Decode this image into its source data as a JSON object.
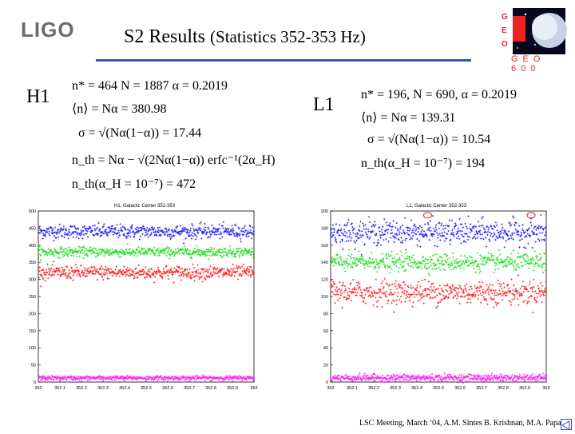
{
  "header": {
    "logo_text": "LIGO",
    "title_main": "S2 Results",
    "title_sub": "(Statistics 352-353 Hz)",
    "geo_logo": "GEO 600"
  },
  "h1": {
    "label": "H1",
    "eq1": "n* = 464     N = 1887     α = 0.2019",
    "eq2": "⟨n⟩ = Nα = 380.98",
    "eq3": "σ = √(Nα(1−α)) = 17.44",
    "eq4": "n_th = Nα − √(2Nα(1−α)) erfc⁻¹(2α_H)",
    "eq5": "n_th(α_H = 10⁻⁷) = 472"
  },
  "l1": {
    "label": "L1",
    "eq1": "n* = 196,     N = 690,     α = 0.2019",
    "eq2": "⟨n⟩ = Nα = 139.31",
    "eq3": "σ = √(Nα(1−α)) = 10.54",
    "eq4": "n_th(α_H = 10⁻⁷) = 194"
  },
  "chart_data": [
    {
      "type": "scatter",
      "title": "H1, Galactic Center 352-353",
      "x_ticks": [
        "352",
        "352.1",
        "352.2",
        "352.3",
        "352.4",
        "352.5",
        "352.6",
        "352.7",
        "352.8",
        "352.9",
        "353"
      ],
      "y_ticks": [
        "0",
        "50",
        "100",
        "150",
        "200",
        "250",
        "300",
        "350",
        "400",
        "450",
        "500"
      ],
      "xlim": [
        352,
        353
      ],
      "ylim": [
        0,
        500
      ],
      "series": [
        {
          "color": "#1a1aff",
          "mean": 440,
          "spread": 10
        },
        {
          "color": "#22dd22",
          "mean": 380,
          "spread": 7
        },
        {
          "color": "#ff1a1a",
          "mean": 320,
          "spread": 10
        },
        {
          "color": "#ff22ff",
          "mean": 12,
          "spread": 3
        }
      ]
    },
    {
      "type": "scatter",
      "title": "L1, Galactic Center 352-353",
      "x_ticks": [
        "352",
        "352.1",
        "352.2",
        "352.3",
        "352.4",
        "352.5",
        "352.6",
        "352.7",
        "352.8",
        "352.9",
        "353"
      ],
      "y_ticks": [
        "0",
        "20",
        "40",
        "60",
        "80",
        "100",
        "120",
        "140",
        "160",
        "180",
        "200"
      ],
      "xlim": [
        352,
        353
      ],
      "ylim": [
        0,
        200
      ],
      "series": [
        {
          "color": "#1a1aff",
          "mean": 175,
          "spread": 7
        },
        {
          "color": "#22dd22",
          "mean": 140,
          "spread": 5
        },
        {
          "color": "#ff1a1a",
          "mean": 105,
          "spread": 7
        },
        {
          "color": "#ff22ff",
          "mean": 5,
          "spread": 2
        }
      ],
      "highlights": [
        {
          "x": 352.45,
          "y": 195
        },
        {
          "x": 352.93,
          "y": 195
        }
      ]
    }
  ],
  "footer": {
    "text": "LSC Meeting, March ‘04, A.M. Sintes B. Krishnan, M.A. Papa"
  }
}
